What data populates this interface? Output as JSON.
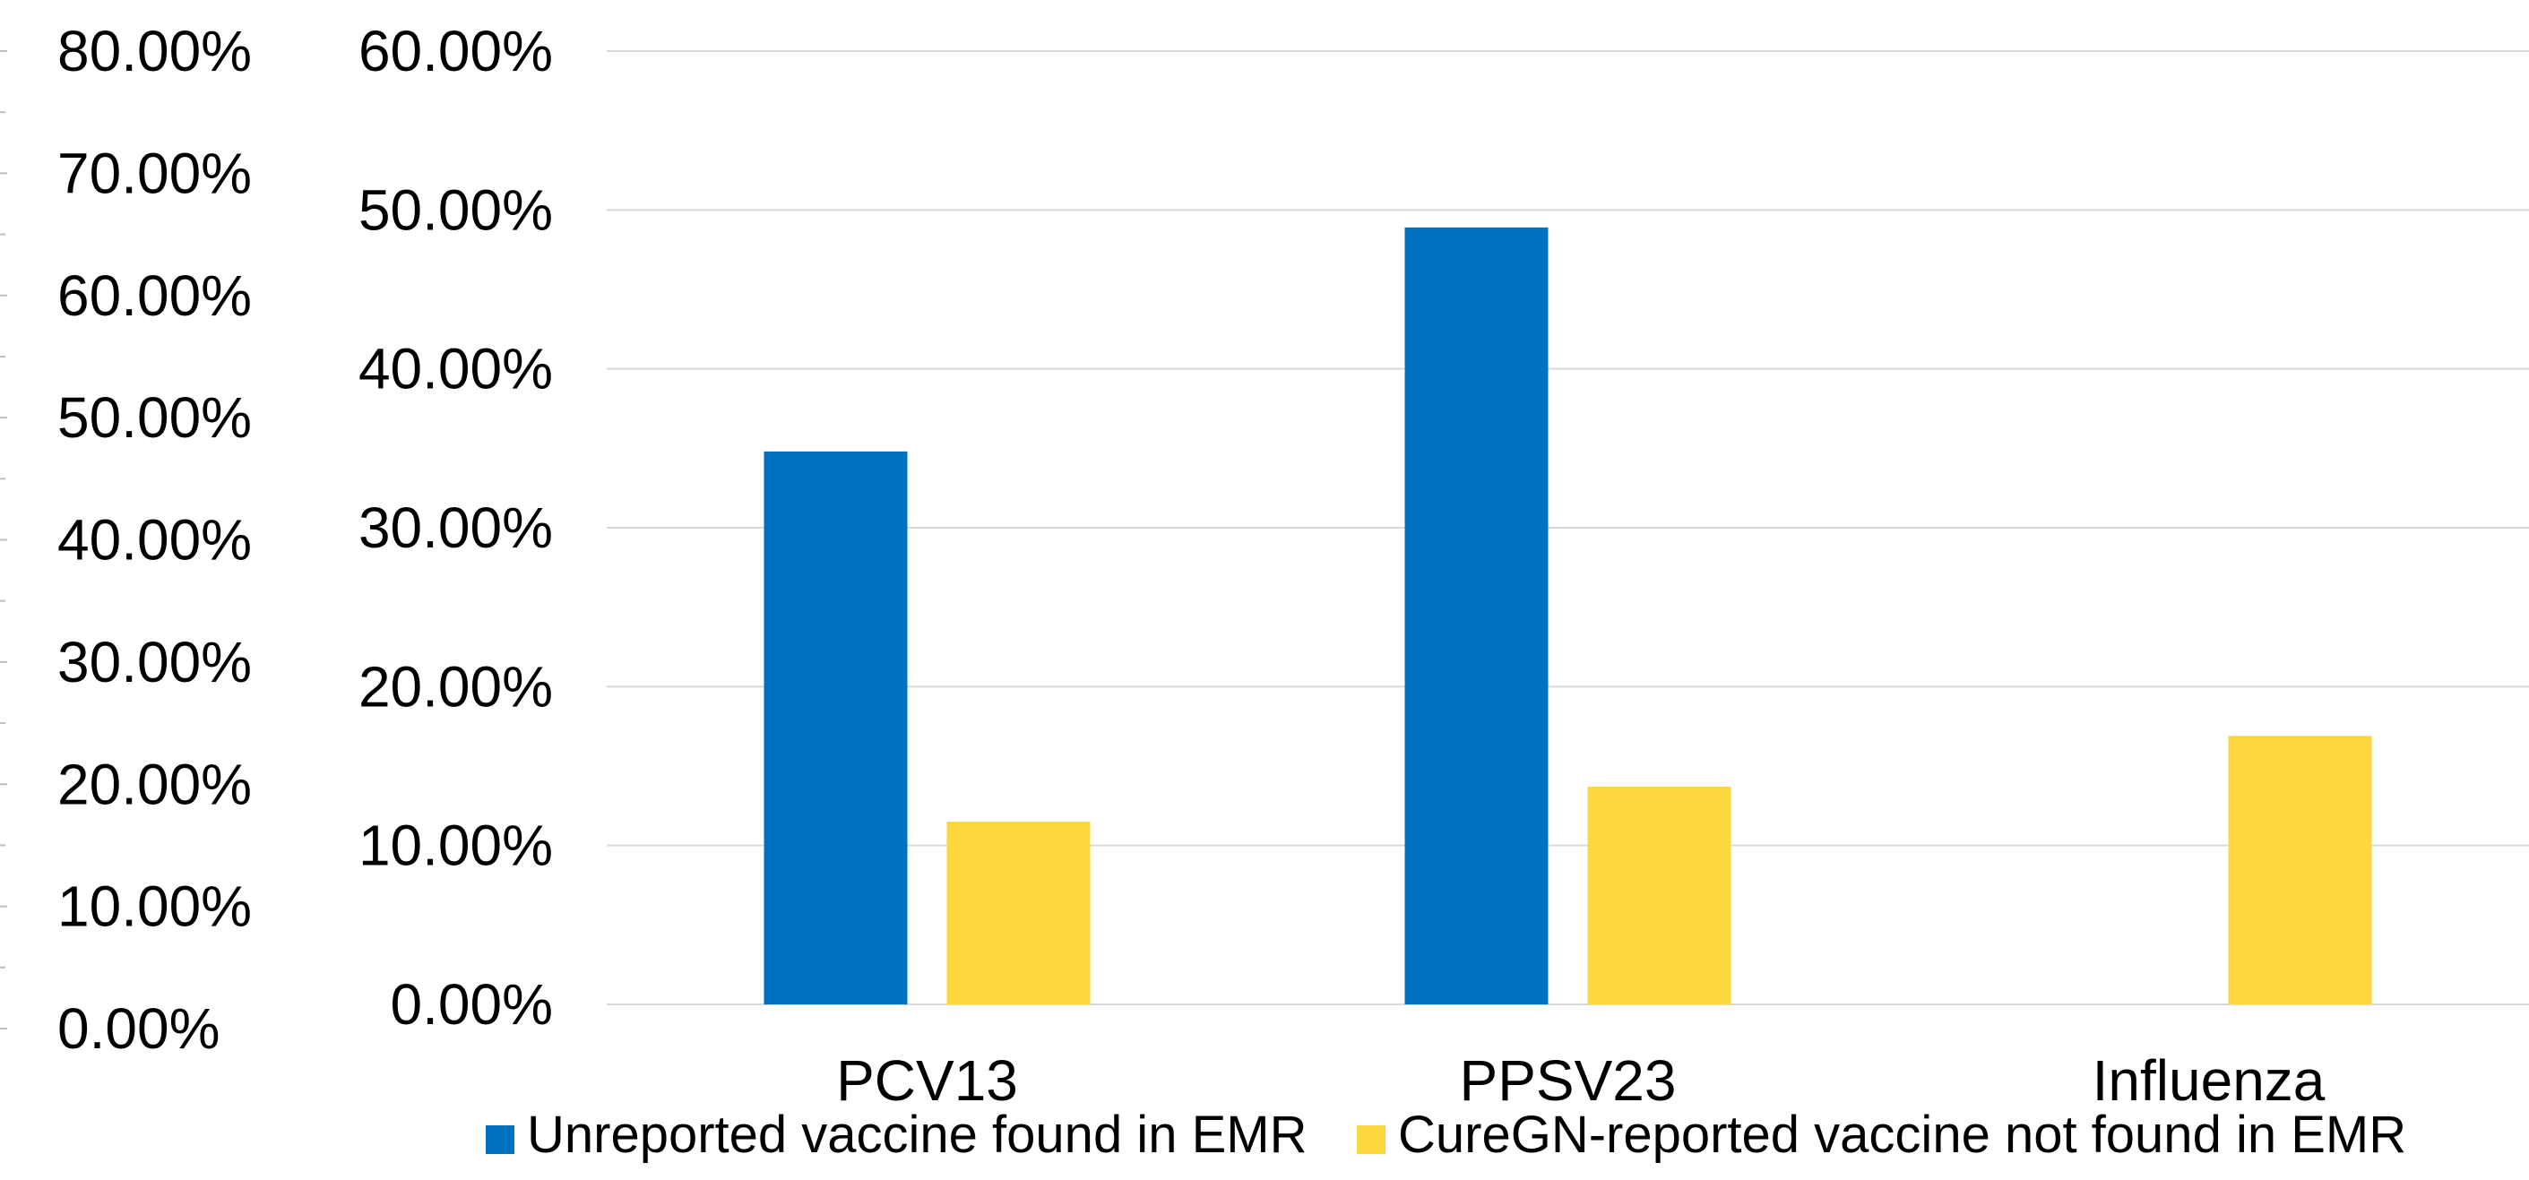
{
  "chart_data": {
    "type": "bar",
    "title": "",
    "xlabel": "",
    "ylabel": "",
    "categories": [
      "PCV13",
      "PPSV23",
      "Influenza"
    ],
    "series": [
      {
        "name": "Unreported vaccine found in EMR",
        "color": "#0070C0",
        "values": [
          0.348,
          0.489,
          0.0
        ]
      },
      {
        "name": "CureGN-reported vaccine not found in EMR",
        "color": "#FDD73E",
        "values": [
          0.115,
          0.137,
          0.169
        ]
      }
    ],
    "ylim": [
      0,
      0.6
    ],
    "y_ticks": [
      "0.00%",
      "10.00%",
      "20.00%",
      "30.00%",
      "40.00%",
      "50.00%",
      "60.00%"
    ],
    "secondary_axis": {
      "ylim": [
        0,
        0.8
      ],
      "ticks": [
        "0.00%",
        "10.00%",
        "20.00%",
        "30.00%",
        "40.00%",
        "50.00%",
        "60.00%",
        "70.00%",
        "80.00%"
      ]
    },
    "grid": true,
    "gridline_color": "#D9D9D9",
    "legend_position": "bottom"
  }
}
